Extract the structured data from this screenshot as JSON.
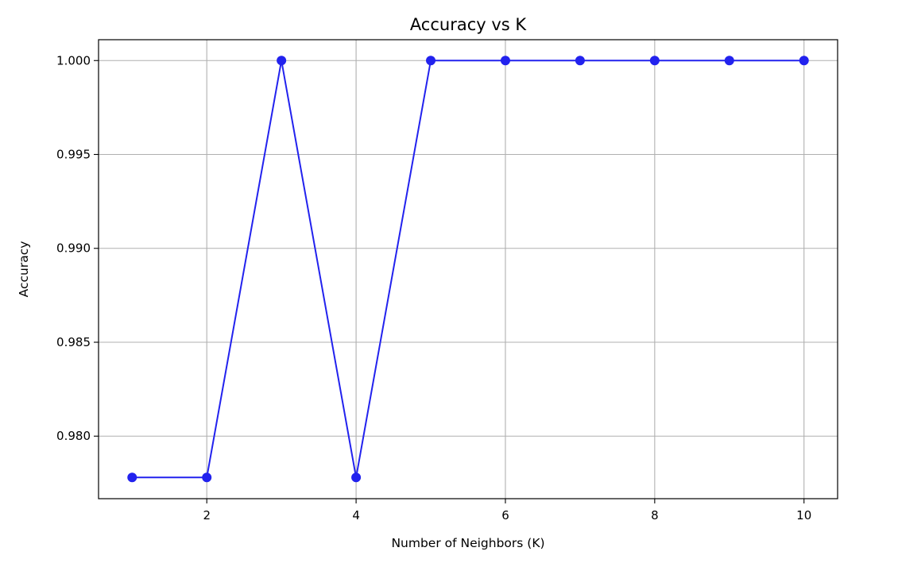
{
  "chart_data": {
    "type": "line",
    "title": "Accuracy vs K",
    "xlabel": "Number of Neighbors (K)",
    "ylabel": "Accuracy",
    "xlim": [
      0.55,
      10.45
    ],
    "ylim": [
      0.97667,
      1.00111
    ],
    "xticks": [
      2,
      4,
      6,
      8,
      10
    ],
    "xtick_labels": [
      "2",
      "4",
      "6",
      "8",
      "10"
    ],
    "yticks": [
      0.98,
      0.985,
      0.99,
      0.995,
      1.0
    ],
    "ytick_labels": [
      "0.980",
      "0.985",
      "0.990",
      "0.995",
      "1.000"
    ],
    "grid": true,
    "series": [
      {
        "x": [
          1,
          2,
          3,
          4,
          5,
          6,
          7,
          8,
          9,
          10
        ],
        "y": [
          0.9778,
          0.9778,
          1.0,
          0.9778,
          1.0,
          1.0,
          1.0,
          1.0,
          1.0,
          1.0
        ],
        "color": "#2222ee",
        "marker": "circle"
      }
    ]
  }
}
